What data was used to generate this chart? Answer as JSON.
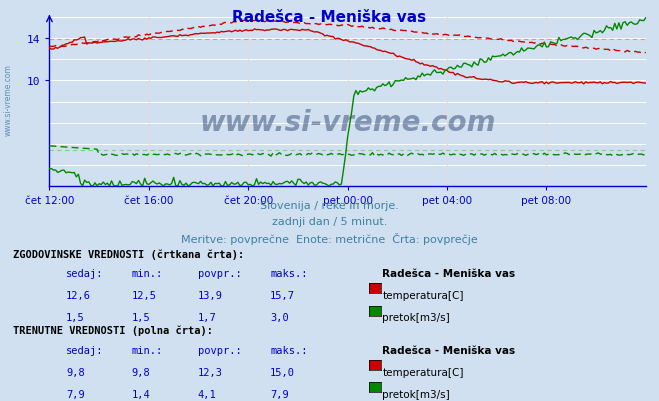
{
  "title": "Radešca - Meniška vas",
  "subtitle1": "Slovenija / reke in morje.",
  "subtitle2": "zadnji dan / 5 minut.",
  "subtitle3": "Meritve: povprečne  Enote: metrične  Črta: povprečje",
  "xlabel_ticks": [
    "čet 12:00",
    "čet 16:00",
    "čet 20:00",
    "pet 00:00",
    "pet 04:00",
    "pet 08:00"
  ],
  "x_tick_positions": [
    0,
    48,
    96,
    144,
    192,
    240
  ],
  "total_points": 289,
  "ylim": [
    0,
    16
  ],
  "yticks": [
    10,
    14
  ],
  "bg_color": "#d0e0f0",
  "grid_color": "#ffffff",
  "grid_color_v": "#e8d8d8",
  "title_color": "#0000cc",
  "subtitle_color": "#4080a0",
  "temp_solid_color": "#cc0000",
  "temp_dashed_color": "#cc0000",
  "flow_solid_color": "#008800",
  "flow_dashed_color": "#008800",
  "hline_red": "#ff8888",
  "hline_green": "#88cc88",
  "axis_color": "#0000cc",
  "watermark_text": "www.si-vreme.com",
  "watermark_color": "#0a2050",
  "legend_hist_label": "ZGODOVINSKE VREDNOSTI (črtkana črta):",
  "legend_curr_label": "TRENUTNE VREDNOSTI (polna črta):",
  "col_headers": [
    "sedaj:",
    "min.:",
    "povpr.:",
    "maks.:"
  ],
  "hist_temp_vals": [
    "12,6",
    "12,5",
    "13,9",
    "15,7"
  ],
  "hist_flow_vals": [
    "1,5",
    "1,5",
    "1,7",
    "3,0"
  ],
  "curr_temp_vals": [
    "9,8",
    "9,8",
    "12,3",
    "15,0"
  ],
  "curr_flow_vals": [
    "7,9",
    "1,4",
    "4,1",
    "7,9"
  ],
  "station_name": "Radešca - Meniška vas",
  "temp_label": "temperatura[C]",
  "flow_label": "pretok[m3/s]",
  "temp_rect_color": "#cc0000",
  "flow_rect_color": "#008800",
  "hist_temp_avg": 13.9,
  "hist_flow_avg": 1.7,
  "curr_temp_min": 9.8,
  "curr_temp_max": 15.0,
  "curr_flow_max": 7.9,
  "flow_axis_max": 8.0,
  "temp_axis_max": 16.0
}
